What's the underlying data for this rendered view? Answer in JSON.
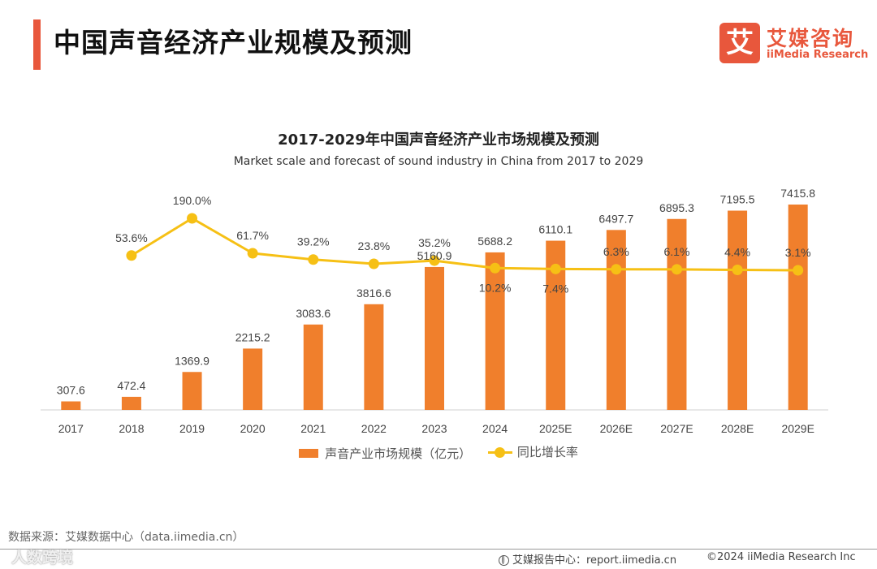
{
  "header": {
    "title": "中国声音经济产业规模及预测",
    "accent_color": "#e8573c"
  },
  "logo": {
    "mark": "艾",
    "name_cn": "艾媒咨询",
    "name_en": "iiMedia Research",
    "color": "#e8573c"
  },
  "chart_data": {
    "type": "bar",
    "title": "2017-2029年中国声音经济产业市场规模及预测",
    "subtitle": "Market scale and forecast of sound industry in China from 2017 to 2029",
    "categories": [
      "2017",
      "2018",
      "2019",
      "2020",
      "2021",
      "2022",
      "2023",
      "2024",
      "2025E",
      "2026E",
      "2027E",
      "2028E",
      "2029E"
    ],
    "series": [
      {
        "name": "声音产业市场规模（亿元）",
        "kind": "bar",
        "color": "#f07f2c",
        "values": [
          307.6,
          472.4,
          1369.9,
          2215.2,
          3083.6,
          3816.6,
          5160.9,
          5688.2,
          6110.1,
          6497.7,
          6895.3,
          7195.5,
          7415.8
        ],
        "labels": [
          "307.6",
          "472.4",
          "1369.9",
          "2215.2",
          "3083.6",
          "3816.6",
          "5160.9",
          "5688.2",
          "6110.1",
          "6497.7",
          "6895.3",
          "7195.5",
          "7415.8"
        ]
      },
      {
        "name": "同比增长率",
        "kind": "line",
        "color": "#f6c015",
        "values": [
          null,
          53.6,
          190.0,
          61.7,
          39.2,
          23.8,
          35.2,
          10.2,
          7.4,
          6.3,
          6.1,
          4.4,
          3.1
        ],
        "labels": [
          "",
          "53.6%",
          "190.0%",
          "61.7%",
          "39.2%",
          "23.8%",
          "35.2%",
          "10.2%",
          "7.4%",
          "6.3%",
          "6.1%",
          "4.4%",
          "3.1%"
        ],
        "label_side": [
          "",
          "above",
          "above",
          "above",
          "above",
          "above",
          "above",
          "below",
          "below",
          "above",
          "above",
          "above",
          "above"
        ]
      }
    ],
    "bar_axis_max": 8000,
    "legend_position": "bottom"
  },
  "source": "数据来源：艾媒数据中心（data.iimedia.cn）",
  "watermark": "人数跨境",
  "footer": {
    "report_label": "艾媒报告中心：report.iimedia.cn",
    "copyright": "©2024  iiMedia Research  Inc"
  }
}
